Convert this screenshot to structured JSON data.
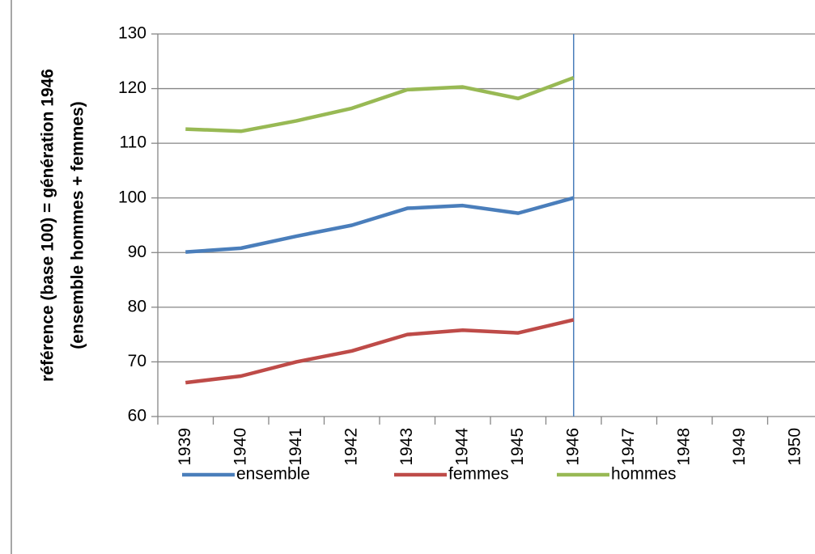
{
  "chart_data": {
    "type": "line",
    "ylabel": [
      "référence (base 100) = génération 1946",
      "(ensemble hommes + femmes)"
    ],
    "categories": [
      "1939",
      "1940",
      "1941",
      "1942",
      "1943",
      "1944",
      "1945",
      "1946",
      "1947",
      "1948",
      "1949",
      "1950"
    ],
    "series": [
      {
        "name": "ensemble",
        "color": "#4a7ebb",
        "values": [
          90.1,
          90.8,
          93,
          95,
          98.1,
          98.6,
          97.2,
          100,
          null,
          null,
          null,
          null
        ]
      },
      {
        "name": "femmes",
        "color": "#be4b48",
        "values": [
          66.2,
          67.4,
          70,
          72,
          75,
          75.8,
          75.3,
          77.7,
          null,
          null,
          null,
          null
        ]
      },
      {
        "name": "hommes",
        "color": "#98b954",
        "values": [
          112.6,
          112.2,
          114.1,
          116.4,
          119.8,
          120.3,
          118.2,
          122,
          null,
          null,
          null,
          null
        ]
      }
    ],
    "ylim": [
      60,
      130
    ],
    "yticks": [
      60,
      70,
      80,
      90,
      100,
      110,
      120,
      130
    ],
    "grid": true,
    "vertical_line_at": "1946",
    "vertical_line_color": "#4a7ebb",
    "legend": "bottom"
  }
}
